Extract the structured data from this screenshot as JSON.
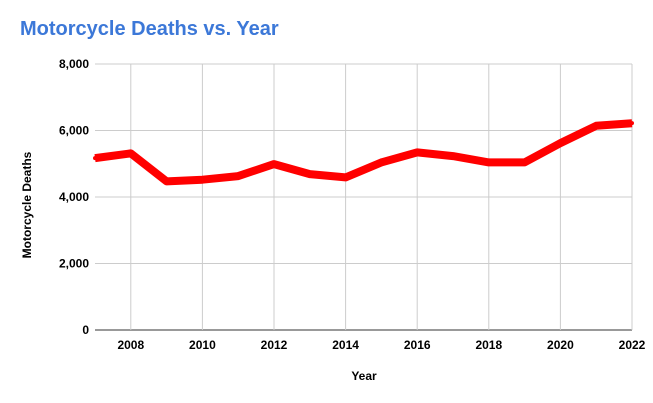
{
  "chart_data": {
    "type": "line",
    "title": "Motorcycle Deaths vs. Year",
    "xlabel": "Year",
    "ylabel": "Motorcycle Deaths",
    "xlim": [
      2007,
      2022
    ],
    "ylim": [
      0,
      8000
    ],
    "x_ticks": [
      2008,
      2010,
      2012,
      2014,
      2016,
      2018,
      2020,
      2022
    ],
    "y_ticks": [
      0,
      2000,
      4000,
      6000,
      8000
    ],
    "x_tick_labels": [
      "2008",
      "2010",
      "2012",
      "2014",
      "2016",
      "2018",
      "2020",
      "2022"
    ],
    "y_tick_labels": [
      "0",
      "2,000",
      "4,000",
      "6,000",
      "8,000"
    ],
    "grid": true,
    "series": [
      {
        "color": "#ff0000",
        "x": [
          2007,
          2008,
          2009,
          2010,
          2011,
          2012,
          2013,
          2014,
          2015,
          2016,
          2017,
          2018,
          2019,
          2020,
          2021,
          2022
        ],
        "values": [
          5170,
          5310,
          4470,
          4520,
          4630,
          4990,
          4690,
          4590,
          5040,
          5340,
          5230,
          5040,
          5040,
          5620,
          6140,
          6220
        ]
      }
    ]
  }
}
